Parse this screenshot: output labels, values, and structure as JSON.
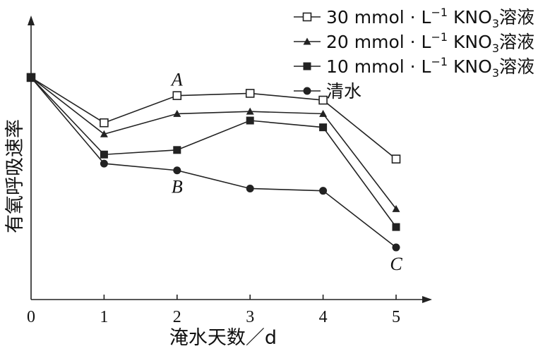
{
  "chart_data": {
    "type": "line",
    "x": [
      0,
      1,
      2,
      3,
      4,
      5
    ],
    "xlabel": "淹水天数／d",
    "ylabel": "有氧呼吸速率",
    "xlim": [
      0,
      5.6
    ],
    "ylim": [
      0,
      10
    ],
    "grid": false,
    "legend_position": "top-right",
    "series": [
      {
        "name_parts": [
          "30 mmol · L",
          "−1",
          " KNO",
          "3",
          "溶液"
        ],
        "marker": "open-square",
        "values": [
          9.8,
          7.8,
          9.0,
          9.1,
          8.8,
          6.2
        ]
      },
      {
        "name_parts": [
          "20 mmol · L",
          "−1",
          " KNO",
          "3",
          "溶液"
        ],
        "marker": "triangle",
        "values": [
          9.8,
          7.3,
          8.2,
          8.3,
          8.2,
          4.0
        ]
      },
      {
        "name_parts": [
          "10 mmol · L",
          "−1",
          " KNO",
          "3",
          "溶液"
        ],
        "marker": "filled-square",
        "values": [
          9.8,
          6.4,
          6.6,
          7.9,
          7.6,
          3.2
        ]
      },
      {
        "name": "清水",
        "marker": "filled-circle",
        "values": [
          9.8,
          6.0,
          5.7,
          4.9,
          4.8,
          2.3
        ]
      }
    ],
    "annotations": [
      {
        "text": "A",
        "x": 2,
        "y": 9.0,
        "anchor": "above"
      },
      {
        "text": "B",
        "x": 2,
        "y": 5.7,
        "anchor": "below"
      },
      {
        "text": "C",
        "x": 5,
        "y": 2.3,
        "anchor": "below"
      }
    ]
  }
}
